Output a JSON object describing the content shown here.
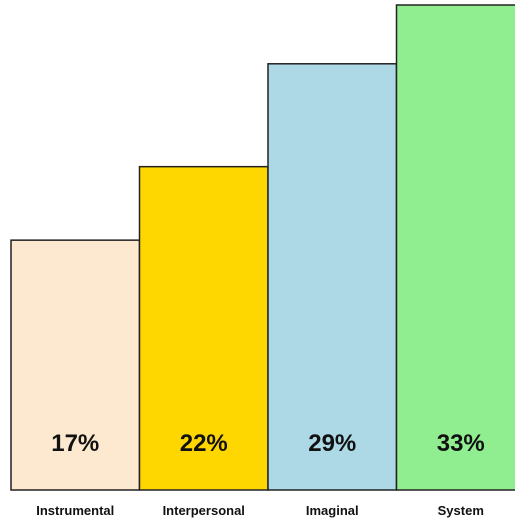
{
  "chart_data": {
    "type": "bar",
    "categories": [
      "Instrumental",
      "Interpersonal",
      "Imaginal",
      "System"
    ],
    "values": [
      17,
      22,
      29,
      33
    ],
    "value_labels": [
      "17%",
      "22%",
      "29%",
      "33%"
    ],
    "colors": [
      "#fde9cf",
      "#ffd700",
      "#add8e6",
      "#90ee90"
    ],
    "title": "",
    "xlabel": "",
    "ylabel": "",
    "ylim": [
      0,
      33
    ]
  }
}
